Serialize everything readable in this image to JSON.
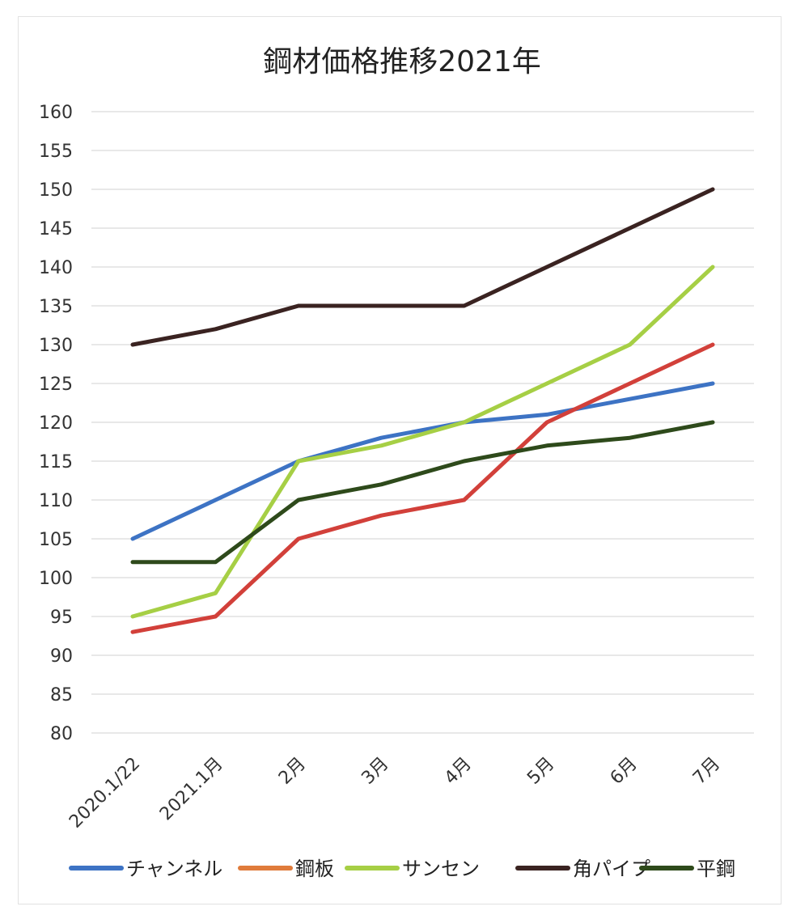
{
  "chart_data": {
    "type": "line",
    "title": "鋼材価格推移2021年",
    "xlabel": "",
    "ylabel": "",
    "categories": [
      "2020.1/22",
      "2021.1月",
      "2月",
      "3月",
      "4月",
      "5月",
      "6月",
      "7月"
    ],
    "ylim": [
      80,
      160
    ],
    "ytick_step": 5,
    "grid": true,
    "legend_position": "bottom",
    "series": [
      {
        "name": "チャンネル",
        "color": "#3d73c4",
        "values": [
          105,
          110,
          115,
          118,
          120,
          121,
          123,
          125
        ]
      },
      {
        "name": "鋼板",
        "color": "#d2403a",
        "values": [
          93,
          95,
          105,
          108,
          110,
          120,
          125,
          130
        ]
      },
      {
        "name": "サンセン",
        "color": "#a6cf45",
        "values": [
          95,
          98,
          115,
          117,
          120,
          125,
          130,
          140
        ]
      },
      {
        "name": "角パイプ",
        "color": "#3a2321",
        "values": [
          130,
          132,
          135,
          135,
          135,
          140,
          145,
          150
        ]
      },
      {
        "name": "平鋼",
        "color": "#2e4a1b",
        "values": [
          102,
          102,
          110,
          112,
          115,
          117,
          118,
          120
        ]
      }
    ],
    "legend_colors": [
      "#3d73c4",
      "#e07b3b",
      "#a6cf45",
      "#3a2321",
      "#2e4a1b"
    ]
  }
}
